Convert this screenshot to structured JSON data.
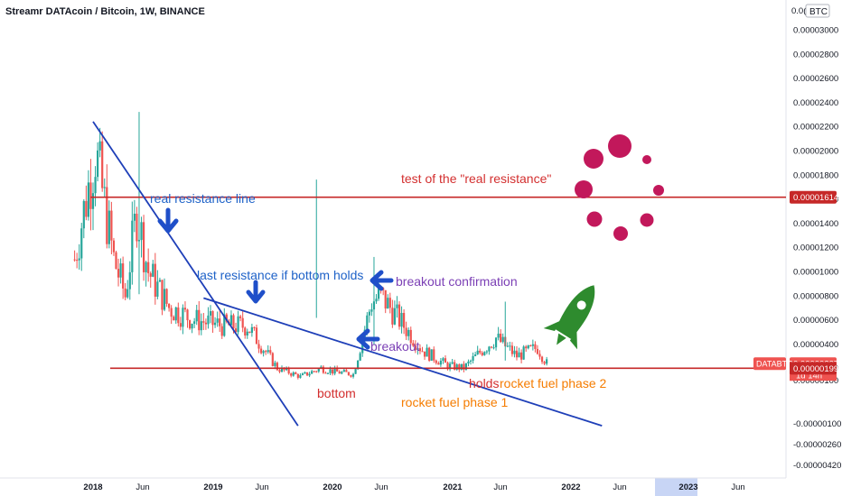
{
  "header": {
    "title": "Streamr DATAcoin / Bitcoin, 1W, BINANCE",
    "currency_badge": "BTC"
  },
  "colors": {
    "up_candle": "#26a69a",
    "down_candle": "#ef5350",
    "blue_line": "#1e3fb8",
    "red_line": "#c62828",
    "arrow_blue": "#1f4fc9",
    "annot_blue": "#1e62c8",
    "annot_red": "#d32f2f",
    "annot_orange": "#f57c00",
    "annot_purple": "#7b3fb5",
    "rocket_green": "#2e8b2e",
    "circle_crimson": "#c2185b"
  },
  "chart_data": {
    "type": "candlestick",
    "symbol": "DATABTC",
    "timeframe": "1W",
    "exchange": "BINANCE",
    "y_axis": {
      "min": -5.2e-06,
      "max": 3.2e-05,
      "tick_labels": [
        "0.00003000",
        "0.00002800",
        "0.00002600",
        "0.00002400",
        "0.00002200",
        "0.00002000",
        "0.00001800",
        "0.00001600",
        "0.00001400",
        "0.00001200",
        "0.00001000",
        "0.00000800",
        "0.00000600",
        "0.00000400",
        "0.00000200",
        "0.00000100",
        "-0.00000100",
        "-0.00000260",
        "-0.00000420"
      ],
      "top_label_partial": "0.0("
    },
    "x_axis": {
      "labels": [
        "2018",
        "Jun",
        "2019",
        "Jun",
        "2020",
        "Jun",
        "2021",
        "Jun",
        "2022",
        "Jun",
        "2023",
        "Jun"
      ],
      "bold_labels": [
        "2018",
        "2019",
        "2020",
        "2021",
        "2022",
        "2023"
      ]
    },
    "price_tags": [
      {
        "label": "0.00001614",
        "value": 1.614e-05,
        "color": "#c62828"
      },
      {
        "label": "0.00000237",
        "value": 2.37e-06,
        "color": "#ef5350",
        "symbol": "DATABTC",
        "countdown": "1d 14h"
      },
      {
        "label": "0.00000199",
        "value": 1.99e-06,
        "color": "#c62828"
      }
    ],
    "horizontal_levels": [
      1.614e-05,
      1.99e-06
    ],
    "series": [
      {
        "name": "DATABTC",
        "start": "2017-11-06",
        "interval_weeks": 1,
        "close_anchors": [
          {
            "date": "2017-11-06",
            "close": 1.1e-05
          },
          {
            "date": "2017-12-25",
            "close": 1.8e-05
          },
          {
            "date": "2018-01-08",
            "close": 2e-05
          },
          {
            "date": "2018-03-05",
            "close": 1.1e-05
          },
          {
            "date": "2018-04-09",
            "close": 8e-06
          },
          {
            "date": "2018-05-14",
            "close": 1.5e-05
          },
          {
            "date": "2018-06-18",
            "close": 1e-05
          },
          {
            "date": "2018-08-20",
            "close": 7e-06
          },
          {
            "date": "2018-11-05",
            "close": 6e-06
          },
          {
            "date": "2019-02-04",
            "close": 5.5e-06
          },
          {
            "date": "2019-04-15",
            "close": 5.5e-06
          },
          {
            "date": "2019-07-15",
            "close": 2e-06
          },
          {
            "date": "2019-09-23",
            "close": 1.3e-06
          },
          {
            "date": "2019-11-25",
            "close": 2e-06
          },
          {
            "date": "2020-01-06",
            "close": 1.7e-06
          },
          {
            "date": "2020-03-02",
            "close": 1.5e-06
          },
          {
            "date": "2020-04-27",
            "close": 7.5e-06
          },
          {
            "date": "2020-05-25",
            "close": 8e-06
          },
          {
            "date": "2020-07-20",
            "close": 6e-06
          },
          {
            "date": "2020-09-28",
            "close": 3.5e-06
          },
          {
            "date": "2020-12-14",
            "close": 2.2e-06
          },
          {
            "date": "2021-02-01",
            "close": 2e-06
          },
          {
            "date": "2021-03-29",
            "close": 3.5e-06
          },
          {
            "date": "2021-05-10",
            "close": 4.5e-06
          },
          {
            "date": "2021-07-12",
            "close": 3e-06
          },
          {
            "date": "2021-09-13",
            "close": 3.7e-06
          },
          {
            "date": "2021-10-11",
            "close": 2.4e-06
          }
        ]
      }
    ],
    "wick_spikes": [
      {
        "date": "2018-05-21",
        "high": 2.32e-05
      },
      {
        "date": "2019-11-11",
        "high": 1.76e-05
      },
      {
        "date": "2020-05-04",
        "high": 1.12e-05
      },
      {
        "date": "2021-06-07",
        "high": 7.5e-06
      }
    ],
    "trendlines": [
      {
        "name": "real-resistance-line",
        "from": {
          "date": "2018-01-01",
          "value": 2.24e-05
        },
        "to": {
          "date": "2019-09-16",
          "value": -1.2e-06
        }
      },
      {
        "name": "last-resistance-line",
        "from": {
          "date": "2018-12-03",
          "value": 7.8e-06
        },
        "to": {
          "date": "2022-03-28",
          "value": -1.2e-06
        }
      }
    ],
    "annotations": [
      {
        "name": "real-resistance-label",
        "text": "real resistance line",
        "color_key": "annot_blue"
      },
      {
        "name": "last-resistance-label",
        "text": "last resistance if bottom holds",
        "color_key": "annot_blue"
      },
      {
        "name": "breakout-confirmation-label",
        "text": "breakout confirmation",
        "color_key": "annot_purple"
      },
      {
        "name": "breakout-label",
        "text": "breakout",
        "color_key": "annot_purple"
      },
      {
        "name": "bottom-label",
        "text": "bottom",
        "color_key": "annot_red"
      },
      {
        "name": "holds-label",
        "text": "holds",
        "color_key": "annot_red"
      },
      {
        "name": "rocket-fuel-1-label",
        "text": "rocket fuel phase 1",
        "color_key": "annot_orange"
      },
      {
        "name": "rocket-fuel-2-label",
        "text": "rocket fuel phase 2",
        "color_key": "annot_orange"
      },
      {
        "name": "real-resistance-test-label",
        "text": "test of the \"real resistance\"",
        "color_key": "annot_red"
      }
    ],
    "icons": [
      "arrow-down-icon",
      "arrow-down-icon",
      "arrow-left-icon",
      "arrow-left-icon",
      "rocket-icon",
      "loading-circles-icon"
    ]
  }
}
